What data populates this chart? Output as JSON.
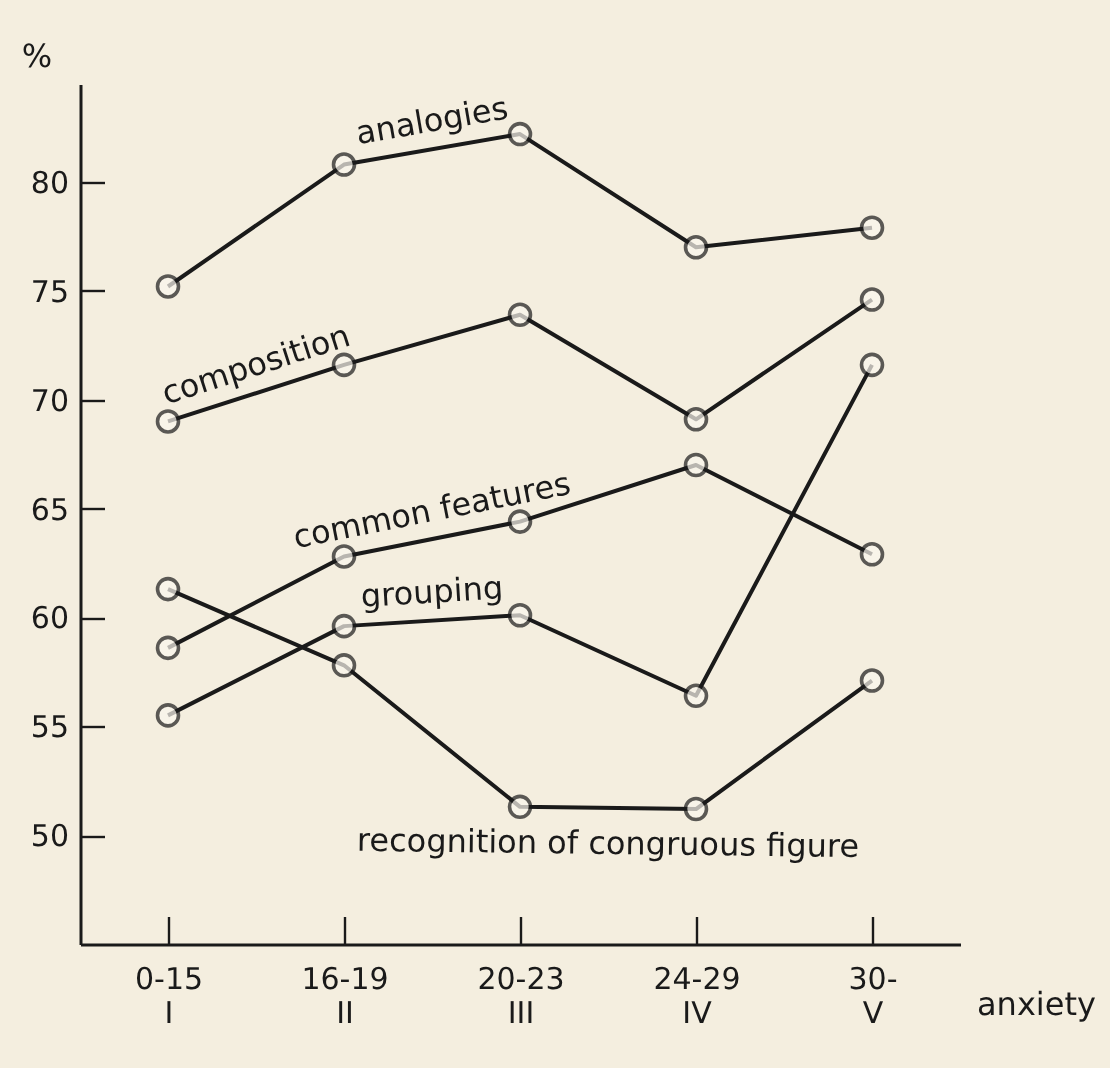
{
  "chart_data": {
    "type": "line",
    "xlabel": "anxiety",
    "ylabel": "%",
    "categories": [
      "0-15\nI",
      "16-19\nII",
      "20-23\nIII",
      "24-29\nIV",
      "30-\nV"
    ],
    "series": [
      {
        "name": "analogies",
        "color": "#1a1a1a",
        "values": [
          75.2,
          80.8,
          82.2,
          77.0,
          77.9
        ]
      },
      {
        "name": "composition",
        "color": "#1a1a1a",
        "values": [
          69.0,
          71.6,
          73.9,
          69.1,
          74.6
        ]
      },
      {
        "name": "common features",
        "color": "#1a1a1a",
        "values": [
          58.6,
          62.8,
          64.4,
          67.0,
          62.9
        ]
      },
      {
        "name": "grouping",
        "color": "#1a1a1a",
        "values": [
          55.5,
          59.6,
          60.1,
          56.4,
          71.6
        ]
      },
      {
        "name": "recognition of congruous figure",
        "color": "#1a1a1a",
        "values": [
          61.3,
          57.8,
          51.3,
          51.2,
          57.1
        ]
      }
    ],
    "ylim": [
      45,
      84.5
    ],
    "yticks": [
      50,
      55,
      60,
      65,
      70,
      75,
      80
    ],
    "grid": false,
    "legend": false,
    "marker": "circle",
    "line_style": "solid"
  }
}
